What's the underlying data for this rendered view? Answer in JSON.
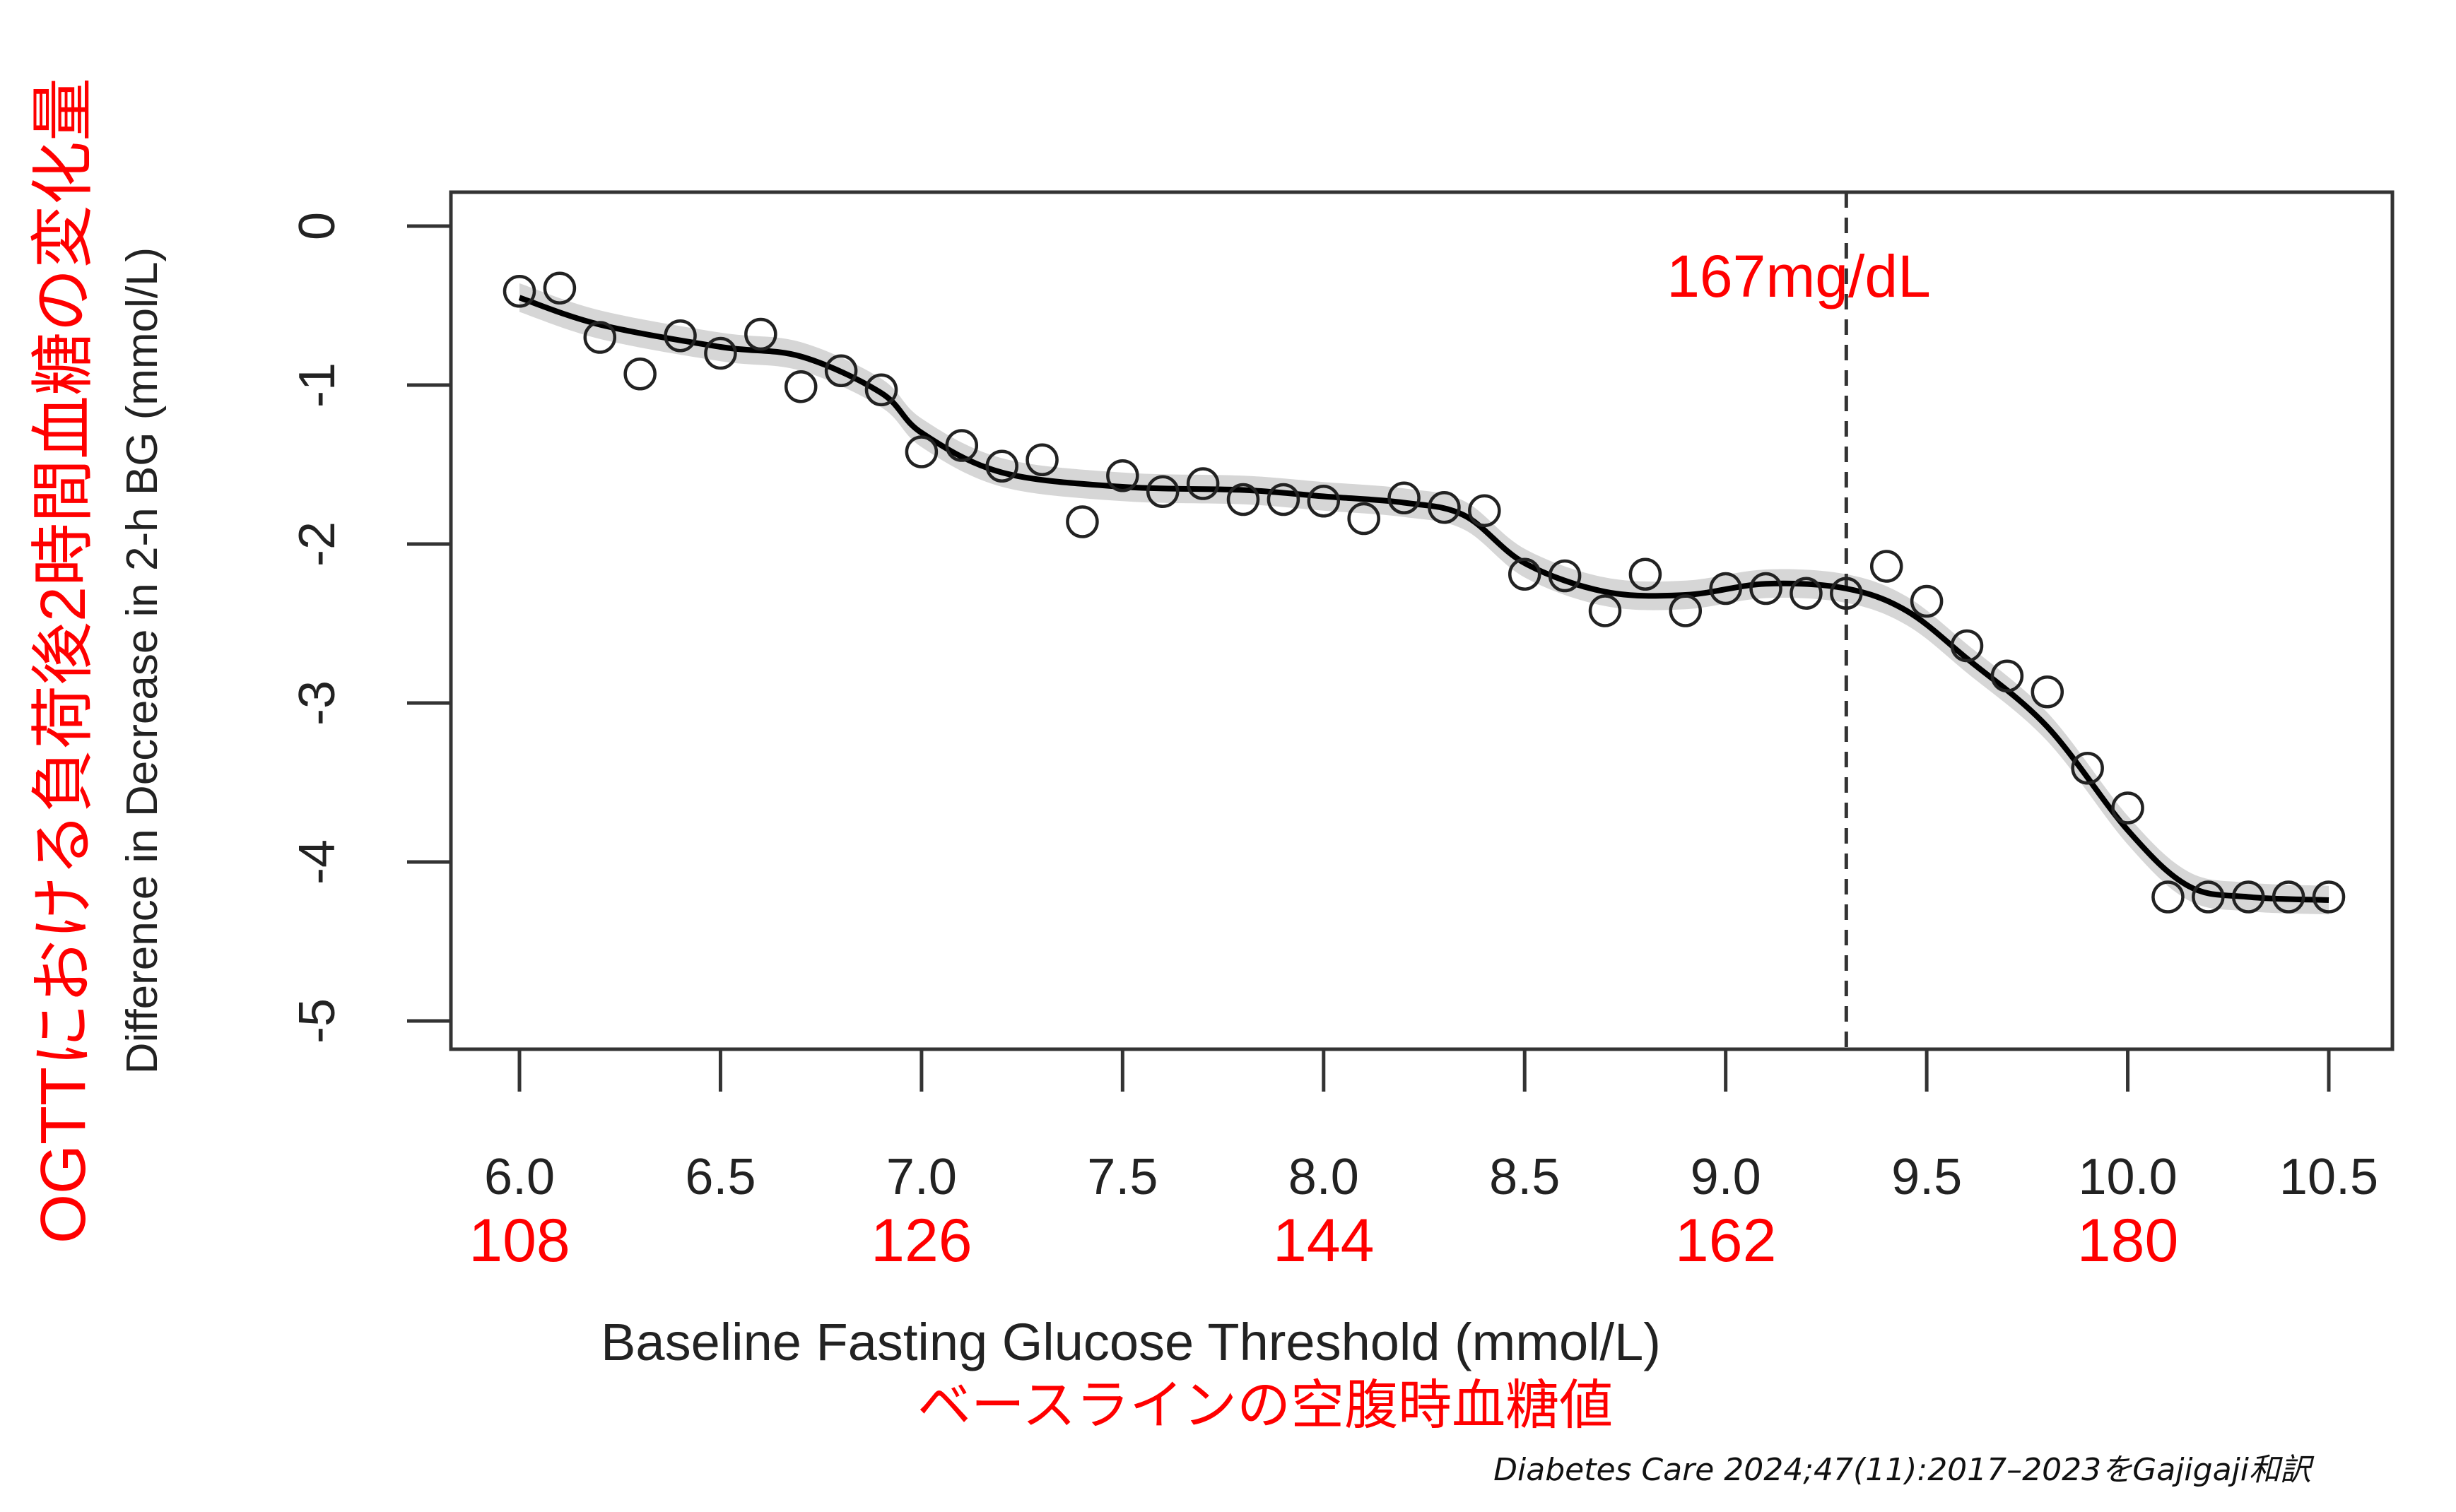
{
  "chart_data": {
    "type": "scatter",
    "xlabel": "Baseline Fasting Glucose Threshold (mmol/L)",
    "xlabel_ja": "ベースラインの空腹時血糖値",
    "ylabel": "Difference in Decrease in 2-h BG (mmol/L)",
    "ylabel_ja": "OGTTにおける負荷後2時間血糖の変化量",
    "xlim": [
      5.9,
      10.7
    ],
    "ylim": [
      -5.2,
      0.2
    ],
    "x_ticks": [
      6.0,
      6.5,
      7.0,
      7.5,
      8.0,
      8.5,
      9.0,
      9.5,
      10.0,
      10.5
    ],
    "x_tick_labels": [
      "6.0",
      "6.5",
      "7.0",
      "7.5",
      "8.0",
      "8.5",
      "9.0",
      "9.5",
      "10.0",
      "10.5"
    ],
    "mgdl_ticks": [
      6.0,
      7.0,
      8.0,
      9.0,
      10.0
    ],
    "mgdl_tick_labels": [
      "108",
      "126",
      "144",
      "162",
      "180"
    ],
    "y_ticks": [
      0,
      -1,
      -2,
      -3,
      -4,
      -5
    ],
    "y_tick_labels": [
      "0",
      "-1",
      "-2",
      "-3",
      "-4",
      "-5"
    ],
    "threshold": {
      "x": 9.3,
      "label": "167mg/dL",
      "style": "dashed"
    },
    "points": {
      "x": [
        6.0,
        6.1,
        6.2,
        6.3,
        6.4,
        6.5,
        6.6,
        6.7,
        6.8,
        6.9,
        7.0,
        7.1,
        7.2,
        7.3,
        7.4,
        7.5,
        7.6,
        7.7,
        7.8,
        7.9,
        8.0,
        8.1,
        8.2,
        8.3,
        8.4,
        8.5,
        8.6,
        8.7,
        8.8,
        8.9,
        9.0,
        9.1,
        9.2,
        9.3,
        9.4,
        9.5,
        9.6,
        9.7,
        9.8,
        9.9,
        10.0,
        10.1,
        10.2,
        10.3,
        10.4,
        10.5
      ],
      "y": [
        -0.41,
        -0.39,
        -0.7,
        -0.93,
        -0.69,
        -0.8,
        -0.68,
        -1.01,
        -0.91,
        -1.03,
        -1.42,
        -1.38,
        -1.51,
        -1.47,
        -1.86,
        -1.57,
        -1.67,
        -1.62,
        -1.72,
        -1.72,
        -1.73,
        -1.84,
        -1.71,
        -1.77,
        -1.79,
        -2.19,
        -2.2,
        -2.42,
        -2.19,
        -2.42,
        -2.28,
        -2.28,
        -2.31,
        -2.31,
        -2.14,
        -2.36,
        -2.64,
        -2.83,
        -2.93,
        -3.41,
        -3.66,
        -4.22,
        -4.22,
        -4.22,
        -4.22,
        -4.22
      ]
    },
    "smooth": {
      "x": [
        6.0,
        6.2,
        6.5,
        6.7,
        6.9,
        7.0,
        7.2,
        7.5,
        7.8,
        8.0,
        8.2,
        8.35,
        8.5,
        8.7,
        8.9,
        9.1,
        9.3,
        9.45,
        9.6,
        9.8,
        10.0,
        10.15,
        10.3,
        10.5
      ],
      "y": [
        -0.45,
        -0.62,
        -0.76,
        -0.82,
        -1.05,
        -1.3,
        -1.55,
        -1.64,
        -1.66,
        -1.7,
        -1.74,
        -1.82,
        -2.12,
        -2.3,
        -2.32,
        -2.25,
        -2.28,
        -2.42,
        -2.72,
        -3.15,
        -3.8,
        -4.15,
        -4.22,
        -4.24
      ]
    },
    "grid": false,
    "colors": {
      "points": "#222222",
      "line": "#000000",
      "band": "#cccccc",
      "annotation": "#ff0000"
    }
  },
  "citation": "Diabetes Care 2024;47(11):2017–2023をGajigaji和訳"
}
